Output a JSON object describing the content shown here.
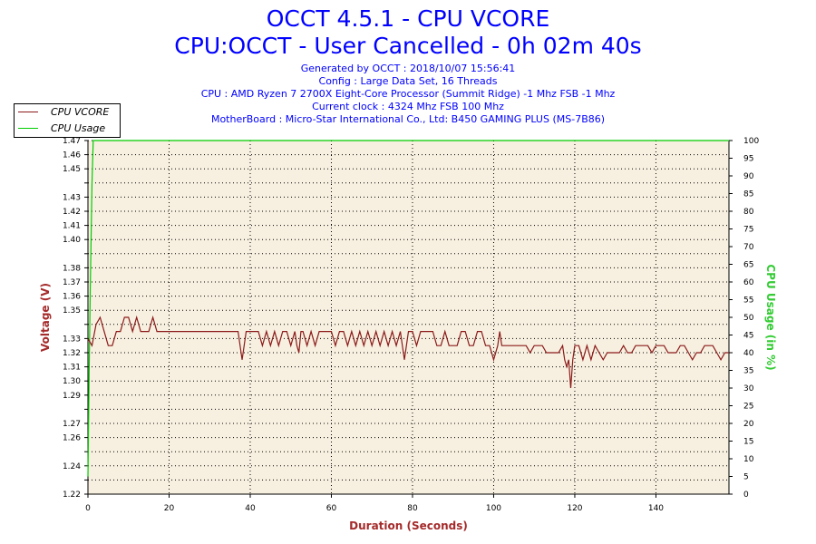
{
  "header": {
    "title": "OCCT 4.5.1 - CPU VCORE",
    "subtitle": "CPU:OCCT - User Cancelled - 0h 02m 40s",
    "info_lines": [
      "Generated by OCCT : 2018/10/07 15:56:41",
      "Config : Large Data Set, 16 Threads",
      "CPU : AMD Ryzen 7 2700X Eight-Core Processor (Summit Ridge) -1 Mhz FSB -1 Mhz",
      "Current clock : 4324 Mhz FSB 100 Mhz",
      "MotherBoard : Micro-Star International Co., Ltd: B450 GAMING PLUS (MS-7B86)"
    ]
  },
  "colors": {
    "title": "#0000ff",
    "vcore": "#8b1a1a",
    "usage": "#00cc00",
    "plot_bg": "#f7f0e0",
    "axis_label_left": "#a52a2a",
    "axis_label_right": "#33cc33",
    "grid": "#000000"
  },
  "chart_data": {
    "type": "line",
    "xlabel": "Duration (Seconds)",
    "ylabel": "Voltage (V)",
    "y2label": "CPU Usage (in %)",
    "xlim": [
      0,
      158
    ],
    "ylim": [
      1.22,
      1.47
    ],
    "y2lim": [
      0,
      100
    ],
    "x_ticks": [
      0,
      20,
      40,
      60,
      80,
      100,
      120,
      140
    ],
    "y_ticks": [
      "1.22",
      "1.23",
      "1.24",
      "1.25",
      "1.26",
      "1.27",
      "1.28",
      "1.29",
      "1.30",
      "1.31",
      "1.32",
      "1.33",
      "1.34",
      "1.35",
      "1.36",
      "1.37",
      "1.38",
      "1.39",
      "1.40",
      "1.41",
      "1.42",
      "1.43",
      "1.44",
      "1.45",
      "1.46",
      "1.47"
    ],
    "y_tick_labels_shown": [
      "1.22",
      "1.24",
      "1.26",
      "1.27",
      "1.29",
      "1.30",
      "1.31",
      "1.32",
      "1.33",
      "1.35",
      "1.36",
      "1.37",
      "1.38",
      "1.40",
      "1.41",
      "1.42",
      "1.43",
      "1.45",
      "1.46",
      "1.47"
    ],
    "y2_ticks": [
      0,
      5,
      10,
      15,
      20,
      25,
      30,
      35,
      40,
      45,
      50,
      55,
      60,
      65,
      70,
      75,
      80,
      85,
      90,
      95,
      100
    ],
    "grid": true,
    "legend_position": "top-left",
    "series": [
      {
        "name": "CPU VCORE",
        "axis": "left",
        "points": [
          [
            0,
            1.33
          ],
          [
            1,
            1.325
          ],
          [
            2,
            1.34
          ],
          [
            3,
            1.345
          ],
          [
            4,
            1.335
          ],
          [
            5,
            1.325
          ],
          [
            6,
            1.325
          ],
          [
            7,
            1.335
          ],
          [
            8,
            1.335
          ],
          [
            9,
            1.345
          ],
          [
            10,
            1.345
          ],
          [
            11,
            1.335
          ],
          [
            12,
            1.345
          ],
          [
            13,
            1.335
          ],
          [
            14,
            1.335
          ],
          [
            15,
            1.335
          ],
          [
            16,
            1.345
          ],
          [
            17,
            1.335
          ],
          [
            20,
            1.335
          ],
          [
            25,
            1.335
          ],
          [
            30,
            1.335
          ],
          [
            35,
            1.335
          ],
          [
            37,
            1.335
          ],
          [
            37.5,
            1.325
          ],
          [
            38,
            1.315
          ],
          [
            38.5,
            1.325
          ],
          [
            39,
            1.335
          ],
          [
            40,
            1.335
          ],
          [
            41,
            1.335
          ],
          [
            42,
            1.335
          ],
          [
            43,
            1.325
          ],
          [
            44,
            1.335
          ],
          [
            45,
            1.325
          ],
          [
            46,
            1.335
          ],
          [
            47,
            1.325
          ],
          [
            48,
            1.335
          ],
          [
            49,
            1.335
          ],
          [
            50,
            1.325
          ],
          [
            51,
            1.335
          ],
          [
            51.5,
            1.325
          ],
          [
            52,
            1.32
          ],
          [
            52.5,
            1.335
          ],
          [
            53,
            1.335
          ],
          [
            54,
            1.325
          ],
          [
            55,
            1.335
          ],
          [
            56,
            1.325
          ],
          [
            57,
            1.335
          ],
          [
            58,
            1.335
          ],
          [
            59,
            1.335
          ],
          [
            60,
            1.335
          ],
          [
            61,
            1.325
          ],
          [
            62,
            1.335
          ],
          [
            63,
            1.335
          ],
          [
            64,
            1.325
          ],
          [
            65,
            1.335
          ],
          [
            66,
            1.325
          ],
          [
            67,
            1.335
          ],
          [
            68,
            1.325
          ],
          [
            69,
            1.335
          ],
          [
            70,
            1.325
          ],
          [
            71,
            1.335
          ],
          [
            72,
            1.325
          ],
          [
            73,
            1.335
          ],
          [
            74,
            1.325
          ],
          [
            75,
            1.335
          ],
          [
            76,
            1.325
          ],
          [
            77,
            1.335
          ],
          [
            77.5,
            1.325
          ],
          [
            78,
            1.315
          ],
          [
            78.5,
            1.325
          ],
          [
            79,
            1.335
          ],
          [
            80,
            1.335
          ],
          [
            81,
            1.325
          ],
          [
            82,
            1.335
          ],
          [
            83,
            1.335
          ],
          [
            84,
            1.335
          ],
          [
            85,
            1.335
          ],
          [
            86,
            1.325
          ],
          [
            87,
            1.325
          ],
          [
            88,
            1.335
          ],
          [
            89,
            1.325
          ],
          [
            90,
            1.325
          ],
          [
            91,
            1.325
          ],
          [
            92,
            1.335
          ],
          [
            93,
            1.335
          ],
          [
            94,
            1.325
          ],
          [
            95,
            1.325
          ],
          [
            96,
            1.335
          ],
          [
            97,
            1.335
          ],
          [
            98,
            1.325
          ],
          [
            99,
            1.325
          ],
          [
            100,
            1.315
          ],
          [
            101,
            1.325
          ],
          [
            101.5,
            1.335
          ],
          [
            102,
            1.325
          ],
          [
            103,
            1.325
          ],
          [
            104,
            1.325
          ],
          [
            105,
            1.325
          ],
          [
            106,
            1.325
          ],
          [
            107,
            1.325
          ],
          [
            108,
            1.325
          ],
          [
            109,
            1.32
          ],
          [
            110,
            1.325
          ],
          [
            111,
            1.325
          ],
          [
            112,
            1.325
          ],
          [
            113,
            1.32
          ],
          [
            114,
            1.32
          ],
          [
            115,
            1.32
          ],
          [
            116,
            1.32
          ],
          [
            117,
            1.325
          ],
          [
            117.5,
            1.315
          ],
          [
            118,
            1.31
          ],
          [
            118.5,
            1.315
          ],
          [
            119,
            1.295
          ],
          [
            119.5,
            1.315
          ],
          [
            120,
            1.325
          ],
          [
            121,
            1.325
          ],
          [
            122,
            1.315
          ],
          [
            123,
            1.325
          ],
          [
            124,
            1.315
          ],
          [
            125,
            1.325
          ],
          [
            126,
            1.32
          ],
          [
            127,
            1.315
          ],
          [
            128,
            1.32
          ],
          [
            129,
            1.32
          ],
          [
            130,
            1.32
          ],
          [
            131,
            1.32
          ],
          [
            132,
            1.325
          ],
          [
            133,
            1.32
          ],
          [
            134,
            1.32
          ],
          [
            135,
            1.325
          ],
          [
            136,
            1.325
          ],
          [
            137,
            1.325
          ],
          [
            138,
            1.325
          ],
          [
            139,
            1.32
          ],
          [
            140,
            1.325
          ],
          [
            141,
            1.325
          ],
          [
            142,
            1.325
          ],
          [
            143,
            1.32
          ],
          [
            144,
            1.32
          ],
          [
            145,
            1.32
          ],
          [
            146,
            1.325
          ],
          [
            147,
            1.325
          ],
          [
            148,
            1.32
          ],
          [
            149,
            1.315
          ],
          [
            150,
            1.32
          ],
          [
            151,
            1.32
          ],
          [
            152,
            1.325
          ],
          [
            153,
            1.325
          ],
          [
            154,
            1.325
          ],
          [
            155,
            1.32
          ],
          [
            156,
            1.315
          ],
          [
            157,
            1.32
          ],
          [
            158,
            1.32
          ]
        ]
      },
      {
        "name": "CPU Usage",
        "axis": "right",
        "points": [
          [
            0,
            5
          ],
          [
            0.3,
            35
          ],
          [
            0.6,
            60
          ],
          [
            1,
            88
          ],
          [
            1.3,
            100
          ],
          [
            5,
            100
          ],
          [
            20,
            100
          ],
          [
            40,
            100
          ],
          [
            60,
            100
          ],
          [
            80,
            100
          ],
          [
            100,
            100
          ],
          [
            120,
            100
          ],
          [
            140,
            100
          ],
          [
            158,
            100
          ]
        ]
      }
    ]
  }
}
